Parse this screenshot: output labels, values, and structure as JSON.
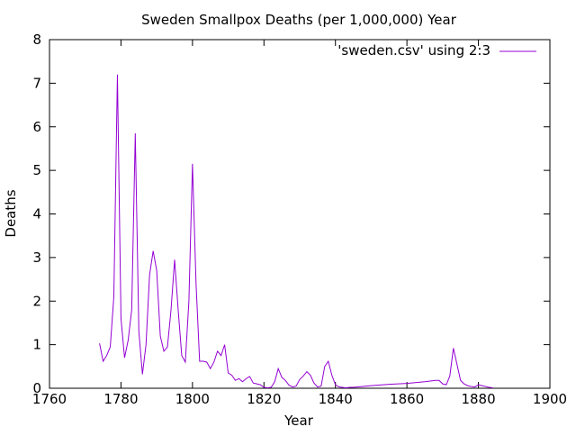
{
  "chart_data": {
    "type": "line",
    "title": "Sweden Smallpox Deaths (per 1,000,000) Year",
    "xlabel": "Year",
    "ylabel": "Deaths",
    "xlim": [
      1760,
      1900
    ],
    "ylim": [
      0,
      8
    ],
    "x_ticks": [
      1760,
      1780,
      1800,
      1820,
      1840,
      1860,
      1880,
      1900
    ],
    "y_ticks": [
      0,
      1,
      2,
      3,
      4,
      5,
      6,
      7,
      8
    ],
    "grid": false,
    "legend_position": "top-right",
    "series": [
      {
        "name": "'sweden.csv' using 2:3",
        "color": "#9400d3",
        "points": [
          [
            1774,
            1.03
          ],
          [
            1775,
            0.62
          ],
          [
            1776,
            0.75
          ],
          [
            1777,
            0.95
          ],
          [
            1778,
            2.1
          ],
          [
            1779,
            7.2
          ],
          [
            1780,
            1.6
          ],
          [
            1781,
            0.7
          ],
          [
            1782,
            1.1
          ],
          [
            1783,
            1.8
          ],
          [
            1784,
            5.85
          ],
          [
            1785,
            1.3
          ],
          [
            1786,
            0.32
          ],
          [
            1787,
            1.0
          ],
          [
            1788,
            2.6
          ],
          [
            1789,
            3.15
          ],
          [
            1790,
            2.7
          ],
          [
            1791,
            1.2
          ],
          [
            1792,
            0.85
          ],
          [
            1793,
            0.95
          ],
          [
            1794,
            1.8
          ],
          [
            1795,
            2.95
          ],
          [
            1796,
            1.8
          ],
          [
            1797,
            0.75
          ],
          [
            1798,
            0.6
          ],
          [
            1799,
            2.0
          ],
          [
            1800,
            5.15
          ],
          [
            1801,
            2.4
          ],
          [
            1802,
            0.62
          ],
          [
            1803,
            0.62
          ],
          [
            1804,
            0.6
          ],
          [
            1805,
            0.45
          ],
          [
            1806,
            0.6
          ],
          [
            1807,
            0.85
          ],
          [
            1808,
            0.75
          ],
          [
            1809,
            1.0
          ],
          [
            1810,
            0.35
          ],
          [
            1811,
            0.3
          ],
          [
            1812,
            0.18
          ],
          [
            1813,
            0.22
          ],
          [
            1814,
            0.15
          ],
          [
            1815,
            0.22
          ],
          [
            1816,
            0.27
          ],
          [
            1817,
            0.12
          ],
          [
            1818,
            0.1
          ],
          [
            1819,
            0.08
          ],
          [
            1820,
            0.02
          ],
          [
            1821,
            0.01
          ],
          [
            1822,
            0.02
          ],
          [
            1823,
            0.15
          ],
          [
            1824,
            0.45
          ],
          [
            1825,
            0.25
          ],
          [
            1826,
            0.18
          ],
          [
            1827,
            0.07
          ],
          [
            1828,
            0.03
          ],
          [
            1829,
            0.05
          ],
          [
            1830,
            0.2
          ],
          [
            1831,
            0.28
          ],
          [
            1832,
            0.38
          ],
          [
            1833,
            0.3
          ],
          [
            1834,
            0.12
          ],
          [
            1835,
            0.03
          ],
          [
            1836,
            0.05
          ],
          [
            1837,
            0.5
          ],
          [
            1838,
            0.62
          ],
          [
            1839,
            0.3
          ],
          [
            1840,
            0.08
          ],
          [
            1841,
            0.03
          ],
          [
            1842,
            0.02
          ],
          [
            1843,
            0.01
          ],
          [
            1844,
            0.02
          ],
          [
            1845,
            0.02
          ],
          [
            1850,
            0.06
          ],
          [
            1855,
            0.09
          ],
          [
            1860,
            0.11
          ],
          [
            1865,
            0.15
          ],
          [
            1868,
            0.18
          ],
          [
            1869,
            0.18
          ],
          [
            1870,
            0.1
          ],
          [
            1871,
            0.08
          ],
          [
            1872,
            0.28
          ],
          [
            1873,
            0.92
          ],
          [
            1874,
            0.55
          ],
          [
            1875,
            0.18
          ],
          [
            1876,
            0.1
          ],
          [
            1877,
            0.06
          ],
          [
            1878,
            0.04
          ],
          [
            1879,
            0.03
          ],
          [
            1880,
            0.08
          ],
          [
            1881,
            0.06
          ],
          [
            1882,
            0.04
          ],
          [
            1883,
            0.02
          ],
          [
            1884,
            0.01
          ]
        ]
      }
    ]
  }
}
